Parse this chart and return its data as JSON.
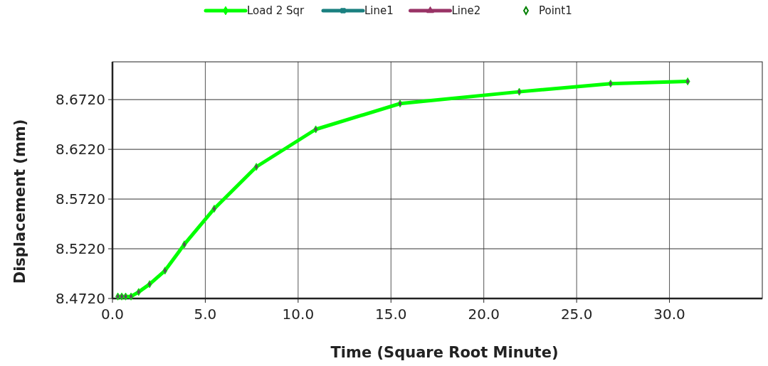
{
  "chart_data": {
    "type": "line",
    "xlabel": "Time (Square Root Minute)",
    "ylabel": "Displacement (mm)",
    "xlim": [
      0,
      35
    ],
    "ylim": [
      8.472,
      8.71
    ],
    "xticks": [
      {
        "value": 0,
        "label": "0.0"
      },
      {
        "value": 5,
        "label": "5.0"
      },
      {
        "value": 10,
        "label": "10.0"
      },
      {
        "value": 15,
        "label": "15.0"
      },
      {
        "value": 20,
        "label": "20.0"
      },
      {
        "value": 25,
        "label": "25.0"
      },
      {
        "value": 30,
        "label": "30.0"
      }
    ],
    "yticks": [
      {
        "value": 8.472,
        "label": "8.4720"
      },
      {
        "value": 8.522,
        "label": "8.5220"
      },
      {
        "value": 8.572,
        "label": "8.5720"
      },
      {
        "value": 8.622,
        "label": "8.6220"
      },
      {
        "value": 8.672,
        "label": "8.6720"
      }
    ],
    "grid": true,
    "legend": "top",
    "series": [
      {
        "name": "Load 2 Sqr",
        "marker": "diamond",
        "color": "#00ff00",
        "x": [
          0.29,
          0.5,
          0.71,
          1,
          1.41,
          2,
          2.83,
          3.87,
          5.48,
          7.75,
          10.95,
          15.49,
          21.91,
          26.83,
          30.98
        ],
        "values": [
          8.474,
          8.474,
          8.474,
          8.474,
          8.4785,
          8.4864,
          8.5,
          8.5264,
          8.5623,
          8.6044,
          8.6421,
          8.668,
          8.6799,
          8.6881,
          8.6903
        ]
      },
      {
        "name": "Line1",
        "type": "line",
        "marker": "square",
        "color": "#1a8080"
      },
      {
        "name": "Line2",
        "type": "line",
        "marker": "triangle",
        "color": "#993366"
      },
      {
        "name": "Point1",
        "type": "scatter",
        "marker": "diamond",
        "color": "#008000"
      }
    ]
  }
}
